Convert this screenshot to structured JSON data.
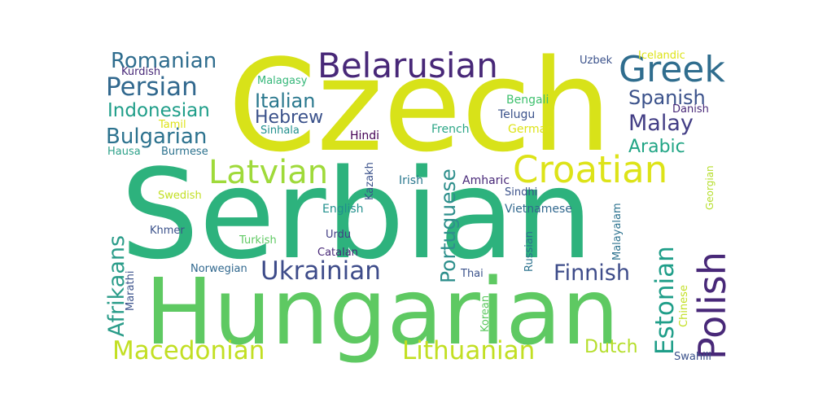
{
  "palette": {
    "dark_purple": "#46277a",
    "purple": "#482878",
    "blue": "#2f6d8e",
    "teal_blue": "#306a8e",
    "teal": "#26828e",
    "green_teal": "#1f9e89",
    "green": "#35b779",
    "light_green": "#6ece58",
    "lime": "#b5de2b",
    "yellow_green": "#d8e219",
    "yellow": "#dde318"
  },
  "words": {
    "czech": "Czech",
    "serbian": "Serbian",
    "hungarian": "Hungarian",
    "belarusian": "Belarusian",
    "greek": "Greek",
    "romanian": "Romanian",
    "persian": "Persian",
    "indonesian": "Indonesian",
    "bulgarian": "Bulgarian",
    "latvian": "Latvian",
    "croatian": "Croatian",
    "polish": "Polish",
    "estonian": "Estonian",
    "ukrainian": "Ukrainian",
    "macedonian": "Macedonian",
    "lithuanian": "Lithuanian",
    "afrikaans": "Afrikaans",
    "portuguese": "Portuguese",
    "finnish": "Finnish",
    "spanish": "Spanish",
    "malay": "Malay",
    "arabic": "Arabic",
    "italian": "Italian",
    "hebrew": "Hebrew",
    "dutch": "Dutch",
    "kurdish": "Kurdish",
    "malagasy": "Malagasy",
    "tamil": "Tamil",
    "hausa": "Hausa",
    "burmese": "Burmese",
    "sinhala": "Sinhala",
    "hindi": "Hindi",
    "french": "French",
    "bengali": "Bengali",
    "telugu": "Telugu",
    "german": "German",
    "uzbek": "Uzbek",
    "icelandic": "Icelandic",
    "danish": "Danish",
    "georgian": "Georgian",
    "swedish": "Swedish",
    "kazakh": "Kazakh",
    "irish": "Irish",
    "amharic": "Amharic",
    "sindhi": "Sindhi",
    "english": "English",
    "vietnamese": "Vietnamese",
    "khmer": "Khmer",
    "urdu": "Urdu",
    "turkish": "Turkish",
    "catalan": "Catalan",
    "russian": "Russian",
    "malayalam": "Malayalam",
    "norwegian": "Norwegian",
    "thai": "Thai",
    "marathi": "Marathi",
    "korean": "Korean",
    "chinese": "Chinese",
    "swahili": "Swahili"
  }
}
